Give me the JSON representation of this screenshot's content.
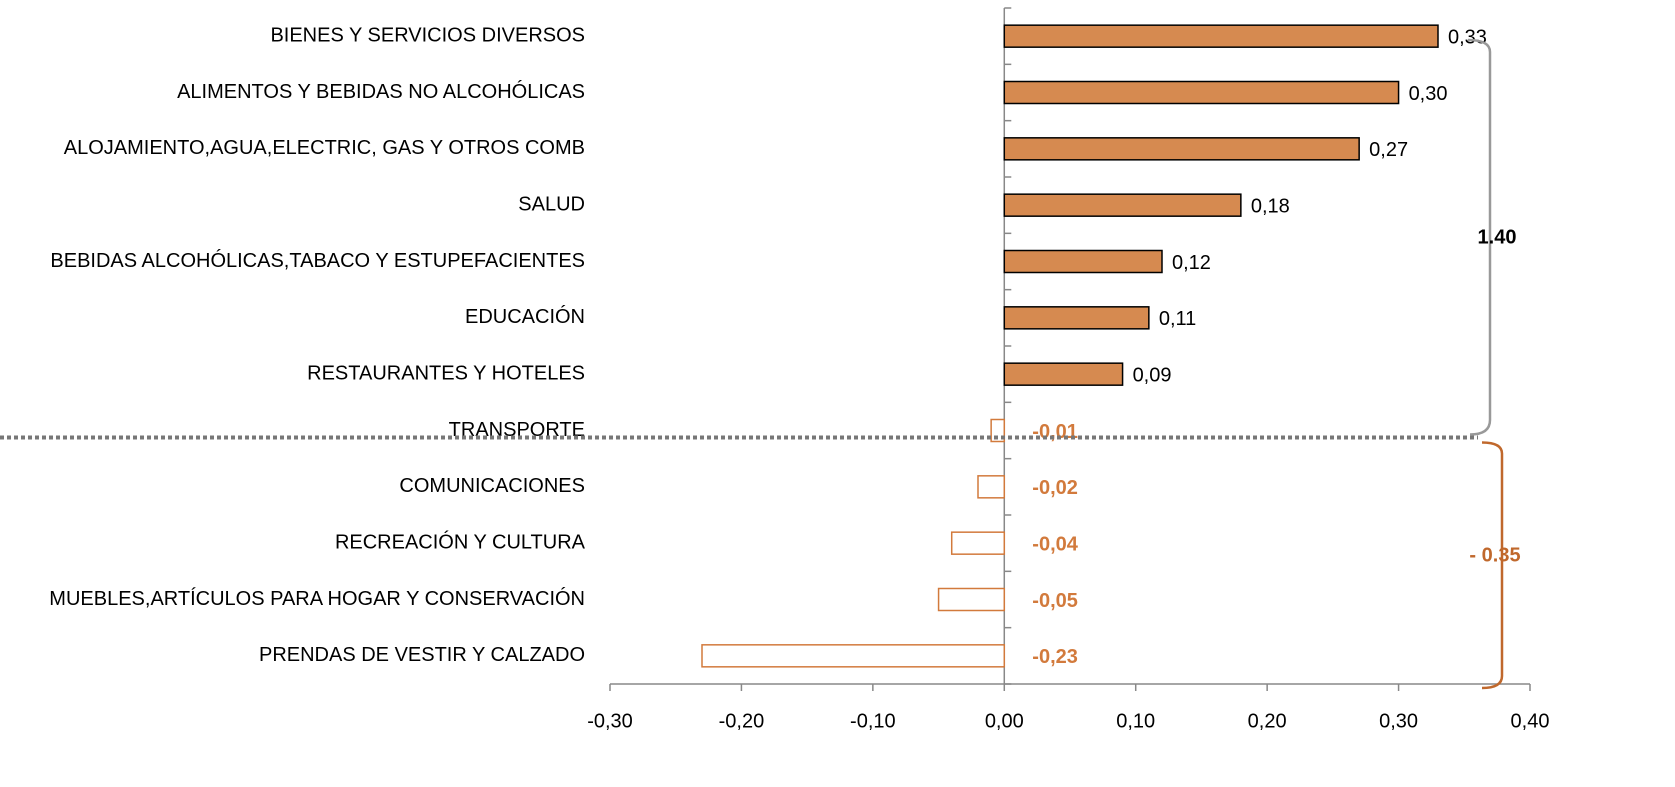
{
  "chart_data": {
    "type": "bar",
    "orientation": "horizontal",
    "categories": [
      "BIENES Y SERVICIOS DIVERSOS",
      "ALIMENTOS Y BEBIDAS NO ALCOHÓLICAS",
      "ALOJAMIENTO,AGUA,ELECTRIC, GAS Y OTROS COMB",
      "SALUD",
      "BEBIDAS ALCOHÓLICAS,TABACO Y ESTUPEFACIENTES",
      "EDUCACIÓN",
      "RESTAURANTES Y HOTELES",
      "TRANSPORTE",
      "COMUNICACIONES",
      "RECREACIÓN Y CULTURA",
      "MUEBLES,ARTÍCULOS PARA HOGAR Y CONSERVACIÓN",
      "PRENDAS DE VESTIR Y CALZADO"
    ],
    "values": [
      0.33,
      0.3,
      0.27,
      0.18,
      0.12,
      0.11,
      0.09,
      -0.01,
      -0.02,
      -0.04,
      -0.05,
      -0.23
    ],
    "value_labels": [
      "0,33",
      "0,30",
      "0,27",
      "0,18",
      "0,12",
      "0,11",
      "0,09",
      "-0,01",
      "-0,02",
      "-0,04",
      "-0,05",
      "-0,23"
    ],
    "color": "#D68A50",
    "negative_color": "#D27A3C",
    "xlim": [
      -0.3,
      0.4
    ],
    "xticks": [
      {
        "value": -0.3,
        "label": "-0,30"
      },
      {
        "value": -0.2,
        "label": "-0,20"
      },
      {
        "value": -0.1,
        "label": "-0,10"
      },
      {
        "value": 0,
        "label": "0,00"
      },
      {
        "value": 0.1,
        "label": "0,10"
      },
      {
        "value": 0.2,
        "label": "0,20"
      },
      {
        "value": 0.3,
        "label": "0,30"
      },
      {
        "value": 0.4,
        "label": "0,40"
      }
    ],
    "annotations": [
      {
        "text": "1.40",
        "color": "#000000"
      },
      {
        "text": "-  0.35",
        "color": "#C0682C"
      }
    ]
  }
}
